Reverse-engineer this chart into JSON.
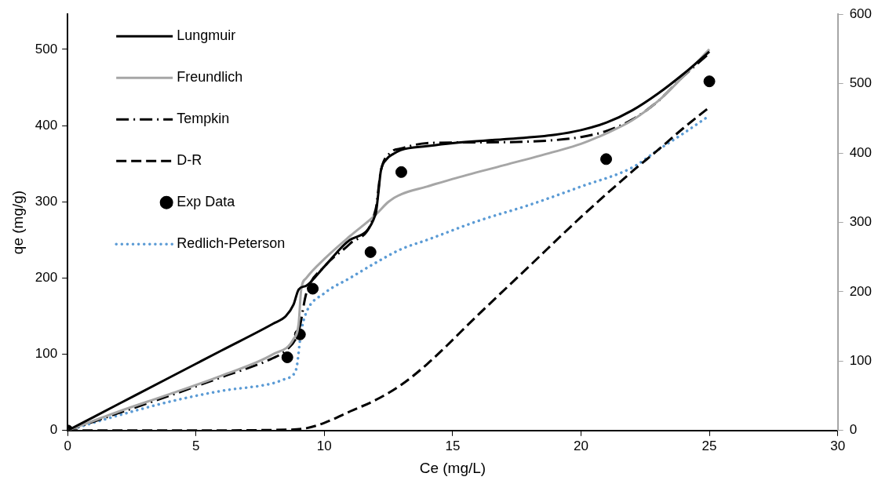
{
  "chart_data": {
    "type": "line",
    "xlabel": "Ce (mg/L)",
    "ylabel": "qe (mg/g)",
    "xlim": [
      0,
      30
    ],
    "xticks": [
      0,
      5,
      10,
      15,
      20,
      25,
      30
    ],
    "ylim": [
      0,
      546
    ],
    "yticks": [
      0,
      100,
      200,
      300,
      400,
      500
    ],
    "y2lim": [
      0,
      600
    ],
    "y2ticks": [
      0,
      100,
      200,
      300,
      400,
      500,
      600
    ],
    "legend": "top left",
    "marker": "none",
    "series": [
      {
        "name": "Lungmuir",
        "line_style": "solid",
        "color": "#000000",
        "x": [
          0,
          2,
          4,
          6,
          8,
          8.5,
          8.8,
          9.0,
          9.3,
          10,
          11,
          12,
          12.1,
          12.2,
          12.4,
          12.7,
          13,
          14,
          15,
          17,
          19,
          20,
          21,
          22,
          23,
          24,
          25
        ],
        "values": [
          0,
          35,
          70,
          105,
          140,
          150,
          165,
          185,
          190,
          215,
          250,
          284,
          310,
          340,
          355,
          363,
          368,
          373,
          377,
          382,
          388,
          394,
          404,
          420,
          442,
          468,
          497
        ]
      },
      {
        "name": "Freundlich",
        "line_style": "solid",
        "color": "#a6a6a6",
        "x": [
          0,
          2,
          4,
          6,
          8,
          8.8,
          9.0,
          9.1,
          9.3,
          10,
          11,
          12,
          12.5,
          13,
          14,
          15,
          17,
          19,
          20,
          21,
          22,
          23,
          24,
          25
        ],
        "values": [
          0,
          25,
          48,
          72,
          100,
          120,
          140,
          185,
          200,
          225,
          255,
          283,
          300,
          310,
          320,
          330,
          348,
          366,
          376,
          390,
          407,
          432,
          465,
          500
        ]
      },
      {
        "name": "Tempkin",
        "line_style": "dashdot",
        "color": "#000000",
        "x": [
          0,
          2,
          4,
          6,
          8,
          8.5,
          9.0,
          9.3,
          10,
          11,
          12,
          12.2,
          12.6,
          13,
          14,
          16,
          18,
          20,
          21,
          22,
          23,
          24,
          25
        ],
        "values": [
          0,
          23,
          46,
          70,
          95,
          105,
          130,
          180,
          215,
          245,
          290,
          340,
          365,
          370,
          377,
          378,
          379,
          385,
          393,
          408,
          432,
          465,
          495
        ]
      },
      {
        "name": "D-R",
        "line_style": "dashed",
        "color": "#000000",
        "x": [
          0,
          4,
          8.5,
          9.3,
          10,
          11,
          12,
          13,
          14,
          16,
          18,
          20,
          22,
          23,
          24,
          25
        ],
        "values": [
          0,
          0,
          1,
          3,
          10,
          25,
          40,
          60,
          87,
          152,
          216,
          280,
          340,
          368,
          397,
          424
        ]
      },
      {
        "name": "Exp Data",
        "type": "scatter",
        "marker": "circle",
        "color": "#000000",
        "x": [
          0,
          8.56,
          9.05,
          9.55,
          11.8,
          13.0,
          20.98,
          25
        ],
        "values": [
          0,
          96,
          126,
          186,
          234,
          339,
          356,
          458
        ]
      },
      {
        "name": "Redlich-Peterson",
        "line_style": "dotted",
        "color": "#5b9bd5",
        "x": [
          0,
          2,
          4,
          6,
          8,
          8.5,
          8.9,
          9.1,
          9.3,
          10,
          11,
          12,
          13,
          14,
          16,
          18,
          20,
          22,
          23,
          24,
          25
        ],
        "values": [
          0,
          20,
          38,
          52,
          62,
          68,
          80,
          130,
          155,
          180,
          200,
          220,
          238,
          250,
          275,
          296,
          320,
          345,
          368,
          390,
          413
        ]
      }
    ]
  }
}
